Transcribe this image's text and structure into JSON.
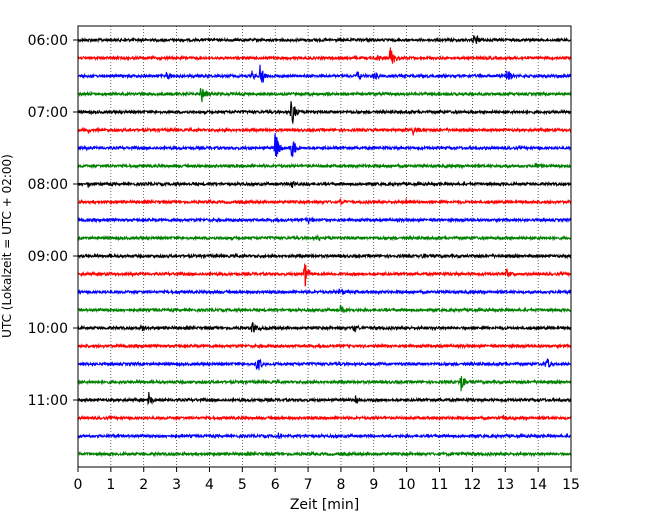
{
  "chart_data": {
    "type": "line",
    "title": "",
    "xlabel": "Zeit  [min]",
    "ylabel": "UTC (Lokalzeit = UTC + 02:00)",
    "xlim": [
      0,
      15
    ],
    "x_ticks": [
      "0",
      "1",
      "2",
      "3",
      "4",
      "5",
      "6",
      "7",
      "8",
      "9",
      "10",
      "11",
      "12",
      "13",
      "14",
      "15"
    ],
    "y_tick_labels": [
      "06:00",
      "07:00",
      "08:00",
      "09:00",
      "10:00",
      "11:00"
    ],
    "trace_interval_min": 15,
    "trace_colors": [
      "#000000",
      "#ff0000",
      "#0000ff",
      "#008000"
    ],
    "grid": {
      "vertical_dotted": true
    },
    "traces": [
      {
        "start": "06:00",
        "color": "#000000",
        "events": [
          {
            "min": 12.05,
            "amp": 0.5
          }
        ]
      },
      {
        "start": "06:15",
        "color": "#ff0000",
        "events": [
          {
            "min": 9.5,
            "amp": 0.85
          },
          {
            "min": 9.1,
            "amp": 0.25
          }
        ]
      },
      {
        "start": "06:30",
        "color": "#0000ff",
        "events": [
          {
            "min": 2.7,
            "amp": 0.35
          },
          {
            "min": 5.55,
            "amp": 0.75
          },
          {
            "min": 5.3,
            "amp": 0.3
          },
          {
            "min": 8.5,
            "amp": 0.3
          },
          {
            "min": 9.0,
            "amp": 0.3
          },
          {
            "min": 13.05,
            "amp": 0.6
          }
        ]
      },
      {
        "start": "06:45",
        "color": "#008000",
        "events": [
          {
            "min": 3.75,
            "amp": 0.8
          }
        ]
      },
      {
        "start": "07:00",
        "color": "#000000",
        "events": [
          {
            "min": 6.5,
            "amp": 1.0
          }
        ]
      },
      {
        "start": "07:15",
        "color": "#ff0000",
        "events": [
          {
            "min": 0.3,
            "amp": 0.2
          },
          {
            "min": 10.2,
            "amp": 0.3
          }
        ]
      },
      {
        "start": "07:30",
        "color": "#0000ff",
        "events": [
          {
            "min": 6.0,
            "amp": 1.0
          },
          {
            "min": 6.45,
            "amp": 1.3
          }
        ]
      },
      {
        "start": "07:45",
        "color": "#008000",
        "events": [
          {
            "min": 13.9,
            "amp": 0.3
          }
        ]
      },
      {
        "start": "08:00",
        "color": "#000000",
        "events": [
          {
            "min": 6.5,
            "amp": 0.35
          },
          {
            "min": 0.3,
            "amp": 0.2
          }
        ]
      },
      {
        "start": "08:15",
        "color": "#ff0000",
        "events": [
          {
            "min": 8.0,
            "amp": 0.2
          },
          {
            "min": 10.0,
            "amp": 0.2
          }
        ]
      },
      {
        "start": "08:30",
        "color": "#0000ff",
        "events": [
          {
            "min": 7.0,
            "amp": 0.25
          }
        ]
      },
      {
        "start": "08:45",
        "color": "#008000",
        "events": [
          {
            "min": 7.3,
            "amp": 0.15
          }
        ]
      },
      {
        "start": "09:00",
        "color": "#000000",
        "events": [
          {
            "min": 10.5,
            "amp": 0.2
          }
        ]
      },
      {
        "start": "09:15",
        "color": "#ff0000",
        "events": [
          {
            "min": 6.9,
            "amp": 0.9
          },
          {
            "min": 13.05,
            "amp": 0.35
          }
        ]
      },
      {
        "start": "09:30",
        "color": "#0000ff",
        "events": [
          {
            "min": 7.95,
            "amp": 0.3
          }
        ]
      },
      {
        "start": "09:45",
        "color": "#008000",
        "events": [
          {
            "min": 8.0,
            "amp": 0.25
          }
        ]
      },
      {
        "start": "10:00",
        "color": "#000000",
        "events": [
          {
            "min": 5.3,
            "amp": 0.45
          },
          {
            "min": 1.9,
            "amp": 0.3
          },
          {
            "min": 8.4,
            "amp": 0.25
          }
        ]
      },
      {
        "start": "10:15",
        "color": "#ff0000",
        "events": []
      },
      {
        "start": "10:30",
        "color": "#0000ff",
        "events": [
          {
            "min": 5.45,
            "amp": 0.7
          },
          {
            "min": 14.25,
            "amp": 0.5
          }
        ]
      },
      {
        "start": "10:45",
        "color": "#008000",
        "events": [
          {
            "min": 11.65,
            "amp": 0.7
          }
        ]
      },
      {
        "start": "11:00",
        "color": "#000000",
        "events": [
          {
            "min": 2.15,
            "amp": 0.5
          },
          {
            "min": 8.45,
            "amp": 0.3
          }
        ]
      },
      {
        "start": "11:15",
        "color": "#ff0000",
        "events": [
          {
            "min": 12.9,
            "amp": 0.2
          }
        ]
      },
      {
        "start": "11:30",
        "color": "#0000ff",
        "events": [
          {
            "min": 6.1,
            "amp": 0.2
          }
        ]
      },
      {
        "start": "11:45",
        "color": "#008000",
        "events": []
      }
    ]
  }
}
